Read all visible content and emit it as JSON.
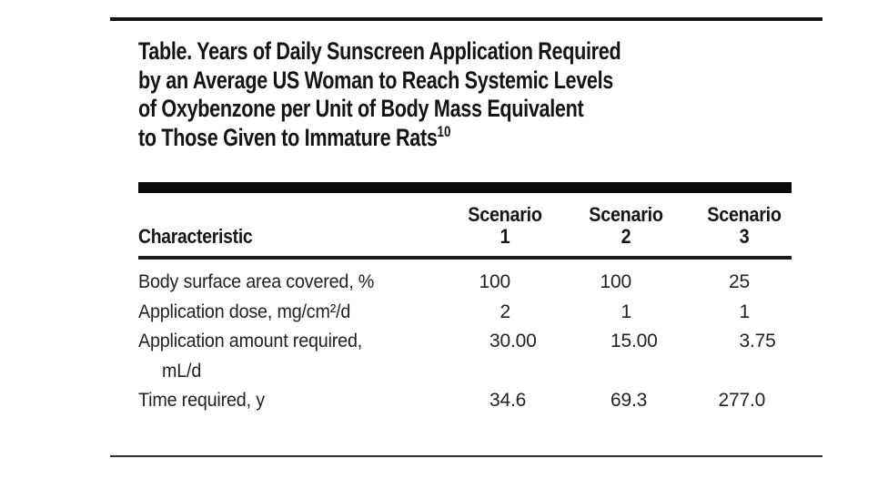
{
  "page": {
    "background": "#ffffff",
    "text_color": "#1a1a1a",
    "rule_color": "#161616"
  },
  "table_card": {
    "title_lines": [
      "Table. Years of Daily Sunscreen Application Required",
      "by an Average US Woman to Reach Systemic Levels",
      "of Oxybenzone per Unit of Body Mass Equivalent",
      "to Those Given to Immature Rats"
    ],
    "title_reference": "10",
    "columns": {
      "label_header": "Characteristic",
      "scenario_headers": [
        {
          "line1": "Scenario",
          "line2": "1"
        },
        {
          "line1": "Scenario",
          "line2": "2"
        },
        {
          "line1": "Scenario",
          "line2": "3"
        }
      ]
    },
    "rows": [
      {
        "label": "Body surface area covered, %",
        "label_cont": "",
        "values": [
          "100",
          "100",
          "25"
        ]
      },
      {
        "label": "Application dose, mg/cm²/d",
        "label_cont": "",
        "values": [
          "2",
          "1",
          "1"
        ]
      },
      {
        "label": "Application amount required,",
        "label_cont": "mL/d",
        "values": [
          "30.00",
          "15.00",
          "3.75"
        ]
      },
      {
        "label": "Time required, y",
        "label_cont": "",
        "values": [
          "34.6",
          "69.3",
          "277.0"
        ]
      }
    ]
  }
}
